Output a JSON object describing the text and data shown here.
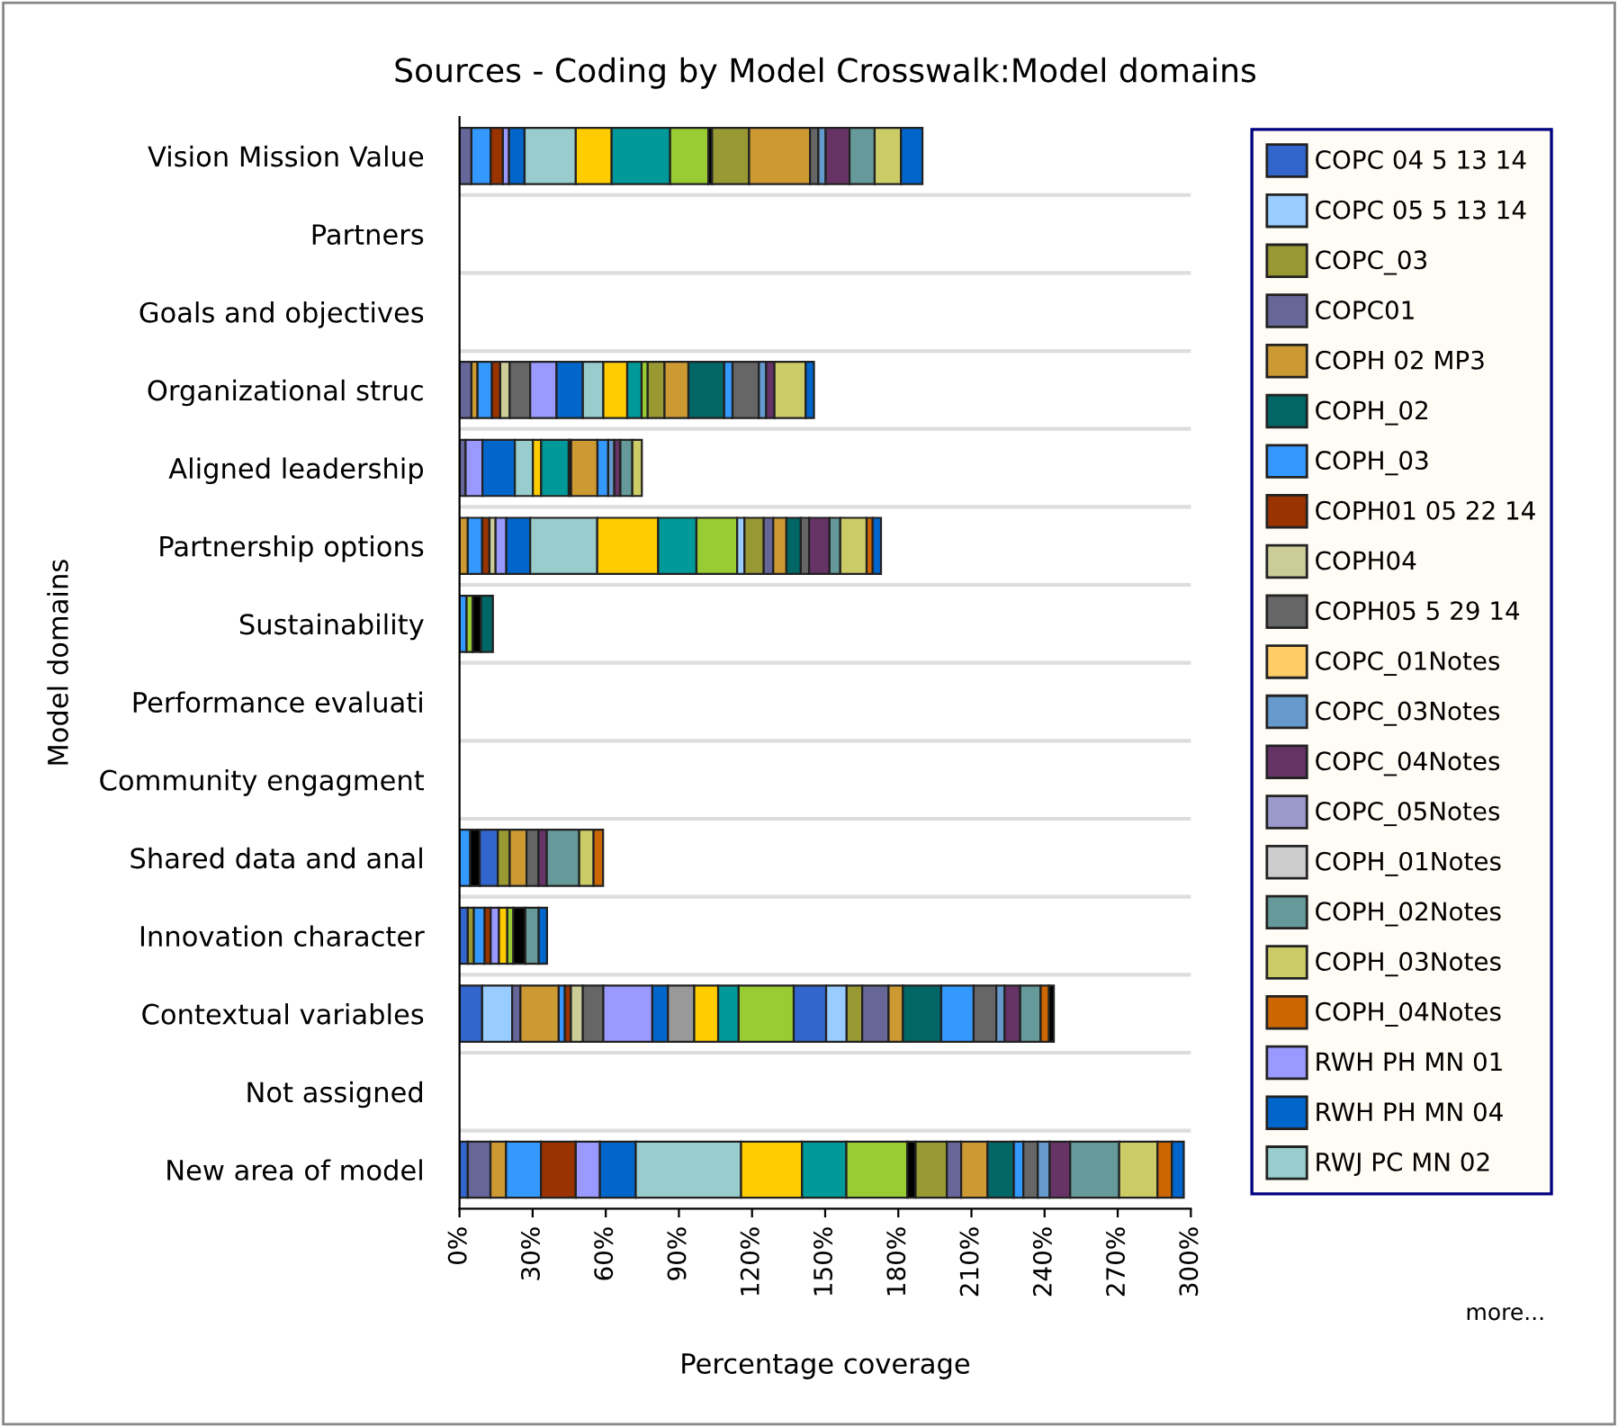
{
  "chart_data": {
    "type": "bar",
    "orientation": "horizontal",
    "stacked": true,
    "title": "Sources - Coding by Model Crosswalk:Model domains",
    "xlabel": "Percentage coverage",
    "ylabel": "Model domains",
    "categories": [
      "Vision Mission Value",
      "Partners",
      "Goals and objectives",
      "Organizational struc",
      "Aligned leadership",
      "Partnership options",
      "Sustainability",
      "Performance evaluati",
      "Community engagment",
      "Shared data and anal",
      "Innovation character",
      "Contextual variables",
      "Not assigned",
      "New area of model"
    ],
    "xlim": [
      0,
      300
    ],
    "xticks": [
      {
        "value": 0,
        "label": "0%"
      },
      {
        "value": 30,
        "label": "30%"
      },
      {
        "value": 60,
        "label": "60%"
      },
      {
        "value": 90,
        "label": "90%"
      },
      {
        "value": 120,
        "label": "120%"
      },
      {
        "value": 150,
        "label": "150%"
      },
      {
        "value": 180,
        "label": "180%"
      },
      {
        "value": 210,
        "label": "210%"
      },
      {
        "value": 240,
        "label": "240%"
      },
      {
        "value": 270,
        "label": "270%"
      },
      {
        "value": 300,
        "label": "300%"
      }
    ],
    "grid": "y",
    "legend": "right",
    "annotations": [
      "more..."
    ],
    "series": [
      {
        "name": "COPC 04 5 13 14",
        "color": "#3366cc",
        "values": [
          0,
          0,
          0,
          0,
          0,
          0,
          0,
          0,
          0,
          0,
          3.4,
          9.3,
          0,
          3.4
        ]
      },
      {
        "name": "COPC 05 5 13 14",
        "color": "#99ccff",
        "values": [
          0,
          0,
          0,
          0,
          0,
          0,
          0,
          0,
          0,
          0,
          0,
          12.3,
          0,
          0
        ]
      },
      {
        "name": "COPC_03",
        "color": "#999933",
        "values": [
          0,
          0,
          0,
          0,
          0,
          0,
          0,
          0,
          0,
          0,
          2.5,
          0,
          0,
          0
        ]
      },
      {
        "name": "COPC01",
        "color": "#666699",
        "values": [
          4.9,
          0,
          0,
          4.9,
          2.5,
          0,
          0,
          0,
          0,
          0,
          0,
          3.4,
          0,
          9.3
        ]
      },
      {
        "name": "COPH 02 MP3",
        "color": "#cc9933",
        "values": [
          0,
          0,
          0,
          2.5,
          0,
          3.4,
          0,
          0,
          0,
          0,
          0,
          15.7,
          0,
          6.4
        ]
      },
      {
        "name": "COPH_02",
        "color": "#006666",
        "values": [
          0,
          0,
          0,
          0,
          0,
          0,
          0,
          0,
          0,
          0,
          0,
          0,
          0,
          0
        ]
      },
      {
        "name": "COPH_03",
        "color": "#3399ff",
        "values": [
          7.9,
          0,
          0,
          5.9,
          0,
          5.9,
          2.9,
          0,
          0,
          4.4,
          4.4,
          2.5,
          0,
          14.3
        ]
      },
      {
        "name": "COPH01 05 22 14",
        "color": "#993300",
        "values": [
          5,
          0,
          0,
          3.4,
          0,
          3,
          0,
          0,
          0,
          0,
          2.5,
          2.5,
          0,
          14.3
        ]
      },
      {
        "name": "COPH04",
        "color": "#cccc99",
        "values": [
          0,
          0,
          0,
          3.9,
          0,
          2.5,
          0,
          0,
          0,
          0,
          0,
          4.9,
          0,
          0
        ]
      },
      {
        "name": "COPH05 5 29 14",
        "color": "#666666",
        "values": [
          0,
          0,
          0,
          8.4,
          0,
          0,
          0,
          0,
          0,
          0,
          0,
          8.4,
          0,
          0
        ]
      },
      {
        "name": "COPC_01Notes",
        "color": "#ffcc66",
        "values": [
          0,
          0,
          0,
          0,
          0,
          0,
          0,
          0,
          0,
          0,
          0,
          0,
          0,
          0
        ]
      },
      {
        "name": "COPC_03Notes",
        "color": "#6699cc",
        "values": [
          0,
          0,
          0,
          0,
          0,
          0,
          0,
          0,
          0,
          0,
          0,
          0,
          0,
          0
        ]
      },
      {
        "name": "COPC_04Notes",
        "color": "#663366",
        "values": [
          0,
          0,
          0,
          0,
          0,
          0,
          0,
          0,
          0,
          0,
          0,
          0,
          0,
          0
        ]
      },
      {
        "name": "COPC_05Notes",
        "color": "#9999cc",
        "values": [
          0,
          0,
          0,
          0,
          0,
          0,
          0,
          0,
          0,
          0,
          0,
          0,
          0,
          0
        ]
      },
      {
        "name": "COPH_01Notes",
        "color": "#cccccc",
        "values": [
          0,
          0,
          0,
          0,
          0,
          0,
          0,
          0,
          0,
          0,
          0,
          0,
          0,
          0
        ]
      },
      {
        "name": "COPH_02Notes",
        "color": "#669999",
        "values": [
          0,
          0,
          0,
          0,
          0,
          0,
          0,
          0,
          0,
          0,
          0,
          0,
          0,
          0
        ]
      },
      {
        "name": "COPH_03Notes",
        "color": "#cccc66",
        "values": [
          0,
          0,
          0,
          0,
          0,
          0,
          0,
          0,
          0,
          0,
          0,
          0,
          0,
          0
        ]
      },
      {
        "name": "COPH_04Notes",
        "color": "#cc6600",
        "values": [
          0,
          0,
          0,
          0,
          0,
          0,
          0,
          0,
          0,
          0,
          0,
          0,
          0,
          0
        ]
      },
      {
        "name": "RWH PH MN 01",
        "color": "#9999ff",
        "values": [
          2.5,
          0,
          0,
          10.8,
          6.9,
          4.4,
          0,
          0,
          0,
          0,
          3.4,
          20.1,
          0,
          9.9
        ]
      },
      {
        "name": "RWH PH MN 04",
        "color": "#0066cc",
        "values": [
          6.4,
          0,
          0,
          10.8,
          13.3,
          9.8,
          0,
          0,
          0,
          0,
          0,
          6.4,
          0,
          14.7
        ]
      },
      {
        "name": "RWJ PC MN 02",
        "color": "#99cccc",
        "values": [
          21,
          0,
          0,
          8.4,
          7.4,
          27.5,
          0,
          0,
          0,
          0,
          0,
          0,
          0,
          43.2
        ]
      },
      {
        "color": "#999999",
        "values": [
          0,
          0,
          0,
          0,
          0,
          0,
          0,
          0,
          0,
          0,
          0,
          10.8,
          0,
          0
        ]
      },
      {
        "color": "#ffcc00",
        "values": [
          14.7,
          0,
          0,
          9.8,
          3.4,
          25,
          0,
          0,
          0,
          0,
          3.4,
          9.8,
          0,
          25
        ]
      },
      {
        "color": "#009999",
        "values": [
          24,
          0,
          0,
          5.9,
          11.3,
          15.7,
          0,
          0,
          0,
          0,
          0,
          8.4,
          0,
          18.2
        ]
      },
      {
        "color": "#99cc33",
        "values": [
          15.7,
          0,
          0,
          2.5,
          0,
          16.7,
          2.5,
          0,
          0,
          0,
          2.5,
          22.6,
          0,
          25
        ]
      },
      {
        "color": "#000000",
        "values": [
          1.5,
          0,
          0,
          0,
          1,
          0,
          3.4,
          0,
          0,
          3.9,
          4.9,
          0,
          0,
          3.4
        ]
      },
      {
        "color": "#3366cc",
        "values": [
          0,
          0,
          0,
          0,
          0,
          0,
          0,
          0,
          0,
          7.4,
          0,
          13.3,
          0,
          0
        ]
      },
      {
        "color": "#99ccff",
        "values": [
          0,
          0,
          0,
          0,
          0,
          3,
          0,
          0,
          0,
          0,
          0,
          8.4,
          0,
          0
        ]
      },
      {
        "color": "#999933",
        "values": [
          15.2,
          0,
          0,
          6.9,
          0,
          7.9,
          0,
          0,
          0,
          4.9,
          0,
          6.4,
          0,
          12.8
        ]
      },
      {
        "color": "#666699",
        "values": [
          0,
          0,
          0,
          0,
          0,
          3.9,
          0,
          0,
          0,
          0,
          0,
          10.8,
          0,
          5.9
        ]
      },
      {
        "color": "#cc9933",
        "values": [
          25,
          0,
          0,
          9.8,
          10.8,
          5.4,
          0,
          0,
          0,
          6.9,
          0,
          5.9,
          0,
          10.8
        ]
      },
      {
        "color": "#006666",
        "values": [
          0,
          0,
          0,
          14.7,
          0,
          5.9,
          4.9,
          0,
          0,
          0,
          0,
          15.7,
          0,
          10.8
        ]
      },
      {
        "color": "#3399ff",
        "values": [
          0,
          0,
          0,
          3.4,
          4.4,
          0,
          0,
          0,
          0,
          0,
          0,
          13.3,
          0,
          3.9
        ]
      },
      {
        "color": "#666666",
        "values": [
          3.4,
          0,
          0,
          10.8,
          0,
          3.4,
          0,
          0,
          0,
          4.9,
          0,
          9.3,
          0,
          5.9
        ]
      },
      {
        "color": "#6699cc",
        "values": [
          3,
          0,
          0,
          3,
          2.5,
          0,
          0,
          0,
          0,
          0,
          0,
          3.4,
          0,
          4.9
        ]
      },
      {
        "color": "#663366",
        "values": [
          9.8,
          0,
          0,
          3.4,
          2.5,
          8.4,
          0,
          0,
          0,
          3.4,
          0,
          6.4,
          0,
          8.4
        ]
      },
      {
        "color": "#669999",
        "values": [
          10.3,
          0,
          0,
          0,
          4.9,
          4.4,
          0,
          0,
          0,
          13.3,
          5.5,
          8.4,
          0,
          20.1
        ]
      },
      {
        "color": "#cccc66",
        "values": [
          10.8,
          0,
          0,
          12.8,
          3.9,
          10.8,
          0,
          0,
          0,
          5.9,
          0,
          0,
          0,
          15.7
        ]
      },
      {
        "color": "#cc6600",
        "values": [
          0,
          0,
          0,
          0,
          0,
          2.5,
          0,
          0,
          0,
          3.9,
          0,
          3.4,
          0,
          5.9
        ]
      },
      {
        "color": "#0066cc",
        "values": [
          8.8,
          0,
          0,
          3.4,
          0,
          3.4,
          0,
          0,
          0,
          0,
          3.4,
          0,
          0,
          4.9
        ]
      },
      {
        "color": "#000000",
        "values": [
          0,
          0,
          0,
          0,
          0,
          0,
          0,
          0,
          0,
          0,
          0,
          2,
          0,
          0
        ]
      }
    ]
  }
}
